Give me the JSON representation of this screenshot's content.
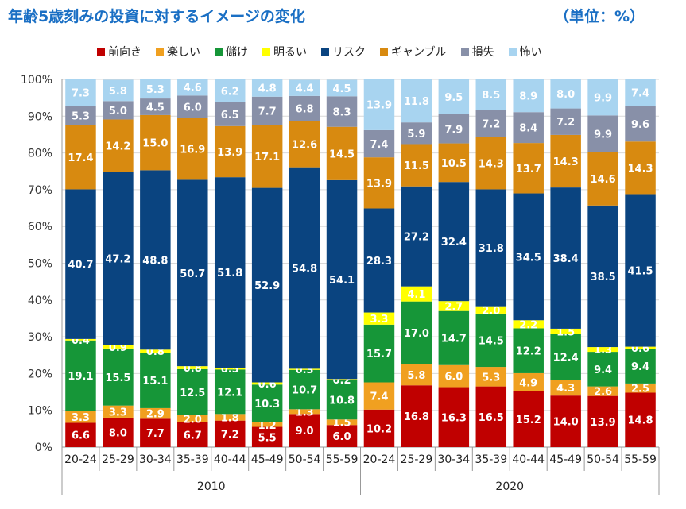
{
  "title": "年齢5歳刻みの投資に対するイメージの変化",
  "unit": "（単位：%）",
  "chart_data": {
    "type": "stacked-bar",
    "title": "年齢5歳刻みの投資に対するイメージの変化",
    "unit": "（単位：%）",
    "ylim": [
      0,
      100
    ],
    "yticks": [
      "0%",
      "10%",
      "20%",
      "30%",
      "40%",
      "50%",
      "60%",
      "70%",
      "80%",
      "90%",
      "100%"
    ],
    "categories": [
      "20-24",
      "25-29",
      "30-34",
      "35-39",
      "40-44",
      "45-49",
      "50-54",
      "55-59",
      "20-24",
      "25-29",
      "30-34",
      "35-39",
      "40-44",
      "45-49",
      "50-54",
      "55-59"
    ],
    "groups": [
      {
        "label": "2010",
        "start": 0,
        "end": 7
      },
      {
        "label": "2020",
        "start": 8,
        "end": 15
      }
    ],
    "series": [
      {
        "name": "前向き",
        "color": "#c00000",
        "label_color": "#ffffff",
        "values": [
          6.6,
          8.0,
          7.7,
          6.7,
          7.2,
          5.5,
          9.0,
          6.0,
          10.2,
          16.8,
          16.3,
          16.5,
          15.2,
          14.0,
          13.9,
          14.8
        ]
      },
      {
        "name": "楽しい",
        "color": "#f0a020",
        "label_color": "#ffffff",
        "values": [
          3.3,
          3.3,
          2.9,
          2.0,
          1.8,
          1.2,
          1.3,
          1.5,
          7.4,
          5.8,
          6.0,
          5.3,
          4.9,
          4.3,
          2.6,
          2.5
        ]
      },
      {
        "name": "儲け",
        "color": "#169638",
        "label_color": "#ffffff",
        "values": [
          19.1,
          15.5,
          15.1,
          12.5,
          12.1,
          10.3,
          10.7,
          10.8,
          15.7,
          17.0,
          14.7,
          14.5,
          12.2,
          12.4,
          9.4,
          9.4
        ]
      },
      {
        "name": "明るい",
        "color": "#ffff00",
        "label_color": "#ffffff",
        "values": [
          0.4,
          0.9,
          0.8,
          0.8,
          0.5,
          0.6,
          0.3,
          0.2,
          3.3,
          4.1,
          2.7,
          2.0,
          2.2,
          1.5,
          1.3,
          0.6
        ]
      },
      {
        "name": "リスク",
        "color": "#0a4480",
        "label_color": "#ffffff",
        "values": [
          40.7,
          47.2,
          48.8,
          50.7,
          51.8,
          52.9,
          54.8,
          54.1,
          28.3,
          27.2,
          32.4,
          31.8,
          34.5,
          38.4,
          38.5,
          41.5
        ]
      },
      {
        "name": "ギャンブル",
        "color": "#d88a10",
        "label_color": "#ffffff",
        "values": [
          17.4,
          14.2,
          15.0,
          16.9,
          13.9,
          17.1,
          12.6,
          14.5,
          13.9,
          11.5,
          10.5,
          14.3,
          13.7,
          14.3,
          14.6,
          14.3
        ]
      },
      {
        "name": "損失",
        "color": "#8890a8",
        "label_color": "#ffffff",
        "values": [
          5.3,
          5.0,
          4.5,
          6.0,
          6.5,
          7.7,
          6.8,
          8.3,
          7.4,
          5.9,
          7.9,
          7.2,
          8.4,
          7.2,
          9.9,
          9.6
        ]
      },
      {
        "name": "怖い",
        "color": "#a8d4f0",
        "label_color": "#ffffff",
        "values": [
          7.3,
          5.8,
          5.3,
          4.6,
          6.2,
          4.8,
          4.4,
          4.5,
          13.9,
          11.8,
          9.5,
          8.5,
          8.9,
          8.0,
          9.9,
          7.4
        ]
      }
    ]
  }
}
